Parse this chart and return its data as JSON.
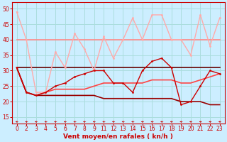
{
  "bg_color": "#cceeff",
  "grid_color": "#aadddd",
  "xlabel": "Vent moyen/en rafales ( kn/h )",
  "xlabel_color": "#cc0000",
  "tick_color": "#cc0000",
  "arrow_color": "#cc0000",
  "ylim": [
    13,
    52
  ],
  "yticks": [
    15,
    20,
    25,
    30,
    35,
    40,
    45,
    50
  ],
  "xlabels": [
    "0",
    "2",
    "3",
    "4",
    "5",
    "6",
    "7",
    "8",
    "9",
    "11",
    "12",
    "13",
    "14",
    "15",
    "16",
    "17",
    "18",
    "19",
    "20",
    "21",
    "22",
    "23"
  ],
  "n_points": 22,
  "line1_y": [
    49,
    40,
    23,
    23,
    36,
    31,
    42,
    37,
    30,
    41,
    34,
    40,
    47,
    40,
    48,
    48,
    40,
    40,
    35,
    48,
    38,
    47
  ],
  "line1_color": "#ffaaaa",
  "line1_lw": 1.0,
  "line2_y": [
    40,
    40,
    40,
    40,
    40,
    40,
    40,
    40,
    40,
    40,
    40,
    40,
    40,
    40,
    40,
    40,
    40,
    40,
    40,
    40,
    40,
    40
  ],
  "line2_color": "#ff8888",
  "line2_lw": 1.2,
  "line3_y": [
    31,
    23,
    22,
    23,
    25,
    26,
    28,
    29,
    30,
    30,
    26,
    26,
    23,
    30,
    33,
    34,
    31,
    19,
    20,
    25,
    30,
    29
  ],
  "line3_color": "#cc0000",
  "line3_lw": 1.0,
  "line4_y": [
    31,
    31,
    31,
    31,
    31,
    31,
    31,
    31,
    31,
    31,
    31,
    31,
    31,
    31,
    31,
    31,
    31,
    31,
    31,
    31,
    31,
    31
  ],
  "line4_color": "#660000",
  "line4_lw": 1.2,
  "line5_y": [
    31,
    23,
    22,
    23,
    24,
    24,
    24,
    24,
    25,
    26,
    26,
    26,
    26,
    26,
    27,
    27,
    27,
    26,
    26,
    27,
    28,
    29
  ],
  "line5_color": "#ff4444",
  "line5_lw": 1.2,
  "line6_y": [
    31,
    23,
    22,
    22,
    22,
    22,
    22,
    22,
    22,
    21,
    21,
    21,
    21,
    21,
    21,
    21,
    21,
    20,
    20,
    20,
    19,
    19
  ],
  "line6_color": "#990000",
  "line6_lw": 1.2
}
